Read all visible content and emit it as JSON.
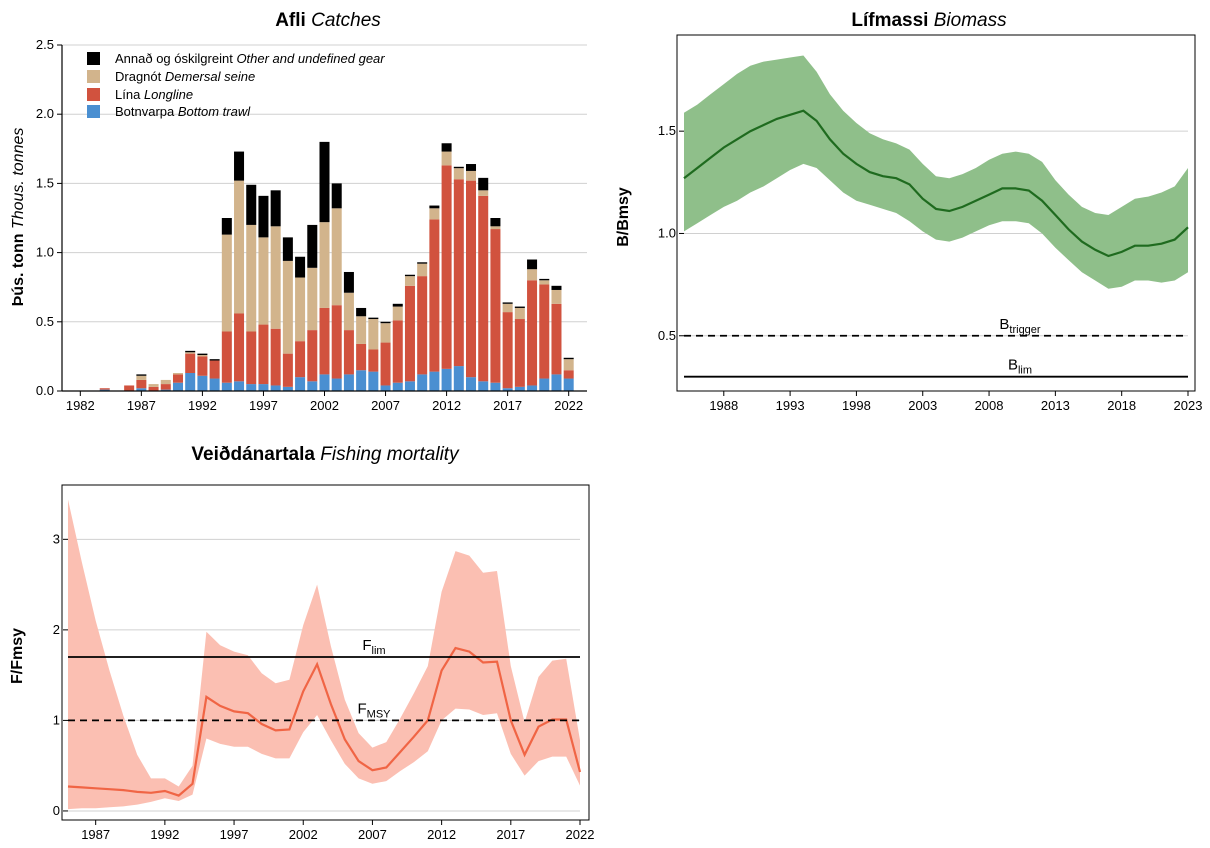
{
  "chart_data": [
    {
      "id": "catches",
      "type": "bar",
      "stacked": true,
      "title_bold": "Afli",
      "title_italic": "Catches",
      "ylabel_bold": "Þús. tonn",
      "ylabel_italic": "Thous. tonnes",
      "xlabel": "",
      "ylim": [
        0,
        2.5
      ],
      "yticks": [
        "0.0",
        "0.5",
        "1.0",
        "1.5",
        "2.0",
        "2.5"
      ],
      "xticks": [
        "1982",
        "1987",
        "1992",
        "1997",
        "2002",
        "2007",
        "2012",
        "2017",
        "2022"
      ],
      "grid": "horizontal",
      "legend_position": "top-left",
      "categories": [
        1982,
        1983,
        1984,
        1985,
        1986,
        1987,
        1988,
        1989,
        1990,
        1991,
        1992,
        1993,
        1994,
        1995,
        1996,
        1997,
        1998,
        1999,
        2000,
        2001,
        2002,
        2003,
        2004,
        2005,
        2006,
        2007,
        2008,
        2009,
        2010,
        2011,
        2012,
        2013,
        2014,
        2015,
        2016,
        2017,
        2018,
        2019,
        2020,
        2021,
        2022
      ],
      "series": [
        {
          "name_plain": "Botnvarpa",
          "name_italic": "Bottom trawl",
          "color": "#4a8fd1",
          "values": [
            0,
            0,
            0.01,
            0,
            0,
            0.02,
            0,
            0.01,
            0.06,
            0.13,
            0.11,
            0.09,
            0.06,
            0.07,
            0.05,
            0.05,
            0.04,
            0.03,
            0.1,
            0.07,
            0.12,
            0.09,
            0.12,
            0.15,
            0.14,
            0.04,
            0.06,
            0.07,
            0.12,
            0.14,
            0.16,
            0.18,
            0.1,
            0.07,
            0.06,
            0.02,
            0.03,
            0.04,
            0.09,
            0.12,
            0.09
          ]
        },
        {
          "name_plain": "Lína",
          "name_italic": "Longline",
          "color": "#d1523e",
          "values": [
            0,
            0,
            0.01,
            0,
            0.04,
            0.06,
            0.03,
            0.04,
            0.06,
            0.14,
            0.14,
            0.13,
            0.37,
            0.49,
            0.38,
            0.43,
            0.41,
            0.24,
            0.26,
            0.37,
            0.48,
            0.53,
            0.32,
            0.19,
            0.16,
            0.31,
            0.45,
            0.69,
            0.71,
            1.1,
            1.47,
            1.35,
            1.42,
            1.34,
            1.11,
            0.55,
            0.49,
            0.76,
            0.68,
            0.51,
            0.06
          ]
        },
        {
          "name_plain": "Dragnót",
          "name_italic": "Demersal seine",
          "color": "#d2b48c",
          "values": [
            0,
            0,
            0,
            0,
            0,
            0.03,
            0.02,
            0.03,
            0.01,
            0.01,
            0.01,
            0,
            0.7,
            0.96,
            0.77,
            0.63,
            0.74,
            0.67,
            0.46,
            0.45,
            0.62,
            0.7,
            0.27,
            0.2,
            0.22,
            0.14,
            0.1,
            0.07,
            0.09,
            0.08,
            0.1,
            0.08,
            0.07,
            0.04,
            0.02,
            0.06,
            0.08,
            0.08,
            0.03,
            0.1,
            0.08
          ]
        },
        {
          "name_plain": "Annað og óskilgreint",
          "name_italic": "Other and undefined gear",
          "color": "#000000",
          "values": [
            0,
            0,
            0,
            0,
            0,
            0.01,
            0,
            0,
            0,
            0.01,
            0.01,
            0.01,
            0.12,
            0.21,
            0.29,
            0.3,
            0.26,
            0.17,
            0.15,
            0.31,
            0.58,
            0.18,
            0.15,
            0.06,
            0.01,
            0.01,
            0.02,
            0.01,
            0.01,
            0.02,
            0.06,
            0.01,
            0.05,
            0.09,
            0.06,
            0.01,
            0.01,
            0.07,
            0.01,
            0.03,
            0.01
          ]
        }
      ]
    },
    {
      "id": "biomass",
      "type": "line",
      "title_bold": "Lífmassi",
      "title_italic": "Biomass",
      "ylabel": "B/Bmsy",
      "xlabel": "",
      "xlim": [
        1985,
        2023
      ],
      "ylim": [
        0.23,
        1.97
      ],
      "yticks": [
        0.5,
        1.0,
        1.5
      ],
      "ytick_labels": [
        "0.5",
        "1.0",
        "1.5"
      ],
      "xticks": [
        1988,
        1993,
        1998,
        2003,
        2008,
        2013,
        2018,
        2023
      ],
      "grid": "horizontal",
      "line_color": "#1f6b1f",
      "band_color": "#8fbf8a",
      "x": [
        1985,
        1986,
        1987,
        1988,
        1989,
        1990,
        1991,
        1992,
        1993,
        1994,
        1995,
        1996,
        1997,
        1998,
        1999,
        2000,
        2001,
        2002,
        2003,
        2004,
        2005,
        2006,
        2007,
        2008,
        2009,
        2010,
        2011,
        2012,
        2013,
        2014,
        2015,
        2016,
        2017,
        2018,
        2019,
        2020,
        2021,
        2022,
        2023
      ],
      "series": [
        {
          "name": "B/Bmsy",
          "values": [
            1.27,
            1.32,
            1.37,
            1.42,
            1.46,
            1.5,
            1.53,
            1.56,
            1.58,
            1.6,
            1.55,
            1.46,
            1.39,
            1.34,
            1.3,
            1.28,
            1.27,
            1.24,
            1.17,
            1.12,
            1.11,
            1.13,
            1.16,
            1.19,
            1.22,
            1.22,
            1.21,
            1.16,
            1.09,
            1.02,
            0.96,
            0.92,
            0.89,
            0.91,
            0.94,
            0.94,
            0.95,
            0.97,
            1.03
          ],
          "lower": [
            1.01,
            1.05,
            1.09,
            1.13,
            1.16,
            1.2,
            1.23,
            1.27,
            1.31,
            1.34,
            1.32,
            1.26,
            1.2,
            1.16,
            1.14,
            1.12,
            1.1,
            1.06,
            1.01,
            0.97,
            0.96,
            0.98,
            1.01,
            1.04,
            1.06,
            1.06,
            1.05,
            1.0,
            0.93,
            0.87,
            0.81,
            0.77,
            0.73,
            0.74,
            0.77,
            0.77,
            0.76,
            0.77,
            0.81
          ],
          "upper": [
            1.59,
            1.63,
            1.68,
            1.73,
            1.78,
            1.82,
            1.84,
            1.85,
            1.86,
            1.87,
            1.79,
            1.68,
            1.6,
            1.54,
            1.49,
            1.46,
            1.44,
            1.41,
            1.34,
            1.28,
            1.27,
            1.29,
            1.32,
            1.36,
            1.39,
            1.4,
            1.39,
            1.35,
            1.26,
            1.19,
            1.13,
            1.1,
            1.09,
            1.13,
            1.17,
            1.18,
            1.2,
            1.23,
            1.32
          ]
        }
      ],
      "reference_lines": [
        {
          "label_main": "B",
          "label_sub": "trigger",
          "value": 0.5,
          "style": "dashed"
        },
        {
          "label_main": "B",
          "label_sub": "lim",
          "value": 0.3,
          "style": "solid"
        }
      ]
    },
    {
      "id": "fishing_mortality",
      "type": "line",
      "title_bold": "Veiðdánartala",
      "title_italic": "Fishing mortality",
      "ylabel": "F/Fmsy",
      "xlabel": "",
      "xlim": [
        1985,
        2022
      ],
      "ylim": [
        -0.1,
        3.6
      ],
      "yticks": [
        0,
        1,
        2,
        3
      ],
      "ytick_labels": [
        "0",
        "1",
        "2",
        "3"
      ],
      "xticks": [
        1987,
        1992,
        1997,
        2002,
        2007,
        2012,
        2017,
        2022
      ],
      "grid": "horizontal",
      "line_color": "#f06545",
      "band_color": "#fbbfb2",
      "x": [
        1985,
        1986,
        1987,
        1988,
        1989,
        1990,
        1991,
        1992,
        1993,
        1994,
        1995,
        1996,
        1997,
        1998,
        1999,
        2000,
        2001,
        2002,
        2003,
        2004,
        2005,
        2006,
        2007,
        2008,
        2009,
        2010,
        2011,
        2012,
        2013,
        2014,
        2015,
        2016,
        2017,
        2018,
        2019,
        2020,
        2021,
        2022
      ],
      "series": [
        {
          "name": "F/Fmsy",
          "values": [
            0.27,
            0.26,
            0.25,
            0.24,
            0.23,
            0.21,
            0.2,
            0.22,
            0.17,
            0.3,
            1.26,
            1.16,
            1.1,
            1.08,
            0.96,
            0.89,
            0.9,
            1.32,
            1.62,
            1.18,
            0.79,
            0.55,
            0.45,
            0.48,
            0.65,
            0.82,
            1.0,
            1.55,
            1.8,
            1.76,
            1.64,
            1.65,
            1.0,
            0.62,
            0.93,
            1.01,
            1.01,
            0.43
          ],
          "lower": [
            0.02,
            0.03,
            0.03,
            0.04,
            0.05,
            0.07,
            0.1,
            0.14,
            0.11,
            0.18,
            0.8,
            0.74,
            0.71,
            0.71,
            0.63,
            0.58,
            0.58,
            0.87,
            1.06,
            0.78,
            0.52,
            0.36,
            0.3,
            0.33,
            0.44,
            0.54,
            0.66,
            1.0,
            1.13,
            1.12,
            1.06,
            1.08,
            0.63,
            0.39,
            0.55,
            0.6,
            0.6,
            0.28
          ],
          "upper": [
            3.44,
            2.75,
            2.1,
            1.55,
            1.05,
            0.62,
            0.36,
            0.36,
            0.27,
            0.5,
            1.98,
            1.83,
            1.76,
            1.72,
            1.52,
            1.41,
            1.45,
            2.05,
            2.5,
            1.82,
            1.23,
            0.86,
            0.7,
            0.76,
            1.02,
            1.3,
            1.6,
            2.42,
            2.87,
            2.82,
            2.63,
            2.65,
            1.6,
            0.98,
            1.48,
            1.66,
            1.68,
            0.78
          ]
        }
      ],
      "reference_lines": [
        {
          "label_main": "F",
          "label_sub": "lim",
          "value": 1.7,
          "style": "solid"
        },
        {
          "label_main": "F",
          "label_sub": "MSY",
          "value": 1.0,
          "style": "dashed"
        }
      ]
    }
  ]
}
